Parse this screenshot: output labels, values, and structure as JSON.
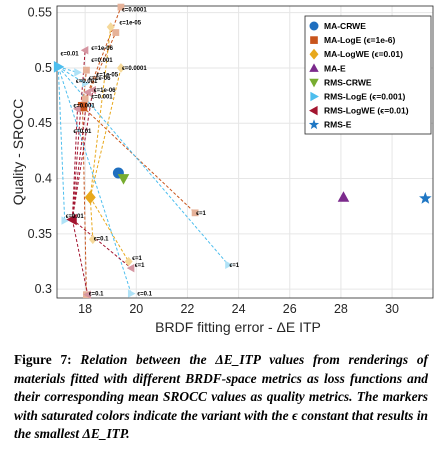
{
  "caption": {
    "label": "Figure 7:",
    "text": "Relation between the ΔE_ITP values from renderings of materials fitted with different BRDF-space metrics as loss functions and their corresponding mean SROCC values as quality metrics. The markers with saturated colors indicate the variant with the ϵ constant that results in the smallest ΔE_ITP."
  },
  "chart_data": {
    "type": "scatter",
    "xlabel": "BRDF fitting error - ΔE ITP",
    "ylabel": "Quality - SROCC",
    "xlim": [
      16.9,
      31.6
    ],
    "ylim": [
      0.292,
      0.556
    ],
    "xticks": [
      18,
      20,
      22,
      24,
      26,
      28,
      30
    ],
    "yticks": [
      0.3,
      0.35,
      0.4,
      0.45,
      0.5,
      0.55
    ],
    "grid": true,
    "legend_position": "top-right",
    "series": [
      {
        "name": "MA-CRWE",
        "color": "#1f6fbf",
        "marker": "circle",
        "points": [
          {
            "x": 19.3,
            "y": 0.405,
            "saturated": true
          }
        ]
      },
      {
        "name": "MA-LogE (ϵ=1e-6)",
        "color": "#c8541c",
        "marker": "square",
        "points": [
          {
            "x": 17.9,
            "y": 0.465,
            "label": "ϵ=1e-6",
            "saturated": true
          },
          {
            "x": 19.2,
            "y": 0.532,
            "label": "ϵ=1e-05"
          },
          {
            "x": 19.4,
            "y": 0.555,
            "label": "ϵ=0.0001"
          },
          {
            "x": 18.0,
            "y": 0.472,
            "label": "ϵ=0.001"
          },
          {
            "x": 18.05,
            "y": 0.498,
            "label": "ϵ=0.01"
          },
          {
            "x": 18.05,
            "y": 0.295,
            "label": "ϵ=0.1"
          },
          {
            "x": 22.3,
            "y": 0.369,
            "label": "ϵ=1"
          }
        ]
      },
      {
        "name": "MA-LogWE (ϵ=0.01)",
        "color": "#e8a81c",
        "marker": "diamond",
        "points": [
          {
            "x": 18.2,
            "y": 0.383,
            "label": "ϵ=0.01",
            "saturated": true
          },
          {
            "x": 19.0,
            "y": 0.537,
            "label": "ϵ=1e-05"
          },
          {
            "x": 19.4,
            "y": 0.5,
            "label": "ϵ=0.001"
          },
          {
            "x": 18.3,
            "y": 0.345,
            "label": "ϵ=0.1"
          },
          {
            "x": 19.7,
            "y": 0.325,
            "label": "ϵ=1"
          }
        ]
      },
      {
        "name": "MA-E",
        "color": "#7b2a8c",
        "marker": "triangle-up",
        "points": [
          {
            "x": 28.1,
            "y": 0.383,
            "saturated": true
          }
        ]
      },
      {
        "name": "RMS-CRWE",
        "color": "#77ac30",
        "marker": "triangle-down",
        "points": [
          {
            "x": 19.5,
            "y": 0.4,
            "saturated": true
          }
        ]
      },
      {
        "name": "RMS-LogE (ϵ=0.001)",
        "color": "#4dbeee",
        "marker": "triangle-right",
        "points": [
          {
            "x": 16.95,
            "y": 0.501,
            "label": "ϵ=0.001",
            "saturated": true
          },
          {
            "x": 17.2,
            "y": 0.362,
            "label": "ϵ=0.01"
          },
          {
            "x": 17.7,
            "y": 0.496,
            "label": "ϵ=1e-05"
          },
          {
            "x": 18.0,
            "y": 0.486,
            "label": "ϵ=1e-06"
          },
          {
            "x": 19.8,
            "y": 0.296,
            "label": "ϵ=0.1"
          },
          {
            "x": 23.6,
            "y": 0.322,
            "label": "ϵ=1"
          }
        ]
      },
      {
        "name": "RMS-LogWE (ϵ=0.01)",
        "color": "#a2142f",
        "marker": "triangle-left",
        "points": [
          {
            "x": 17.5,
            "y": 0.363,
            "label": "ϵ=0.01",
            "saturated": true
          },
          {
            "x": 18.1,
            "y": 0.478,
            "label": "ϵ=1e-06"
          },
          {
            "x": 18.0,
            "y": 0.516,
            "label": "ϵ=1e-06"
          },
          {
            "x": 18.3,
            "y": 0.48,
            "label": "ϵ=0.0001"
          },
          {
            "x": 17.7,
            "y": 0.463,
            "label": "ϵ=1e-06"
          },
          {
            "x": 18.1,
            "y": 0.295,
            "label": "ϵ=0.1"
          },
          {
            "x": 19.8,
            "y": 0.319,
            "label": "ϵ=1"
          }
        ]
      },
      {
        "name": "RMS-E",
        "color": "#1f77c4",
        "marker": "star",
        "points": [
          {
            "x": 31.3,
            "y": 0.382,
            "saturated": true
          }
        ]
      }
    ],
    "annotations": [
      {
        "text": "ϵ=0.0001",
        "x": 19.4,
        "y": 0.553
      },
      {
        "text": "ϵ=1e-05",
        "x": 19.3,
        "y": 0.541
      },
      {
        "text": "ϵ=1e-06",
        "x": 18.2,
        "y": 0.518
      },
      {
        "text": "ϵ=0.001",
        "x": 18.2,
        "y": 0.507
      },
      {
        "text": "ϵ=0.01",
        "x": 17.0,
        "y": 0.513
      },
      {
        "text": "ϵ=0.0001",
        "x": 19.4,
        "y": 0.5
      },
      {
        "text": "ϵ=1e-05",
        "x": 18.4,
        "y": 0.494
      },
      {
        "text": "ϵ=1e-06",
        "x": 18.1,
        "y": 0.491
      },
      {
        "text": "ϵ=0.001",
        "x": 17.6,
        "y": 0.488
      },
      {
        "text": "ϵ=1e-06",
        "x": 18.3,
        "y": 0.48
      },
      {
        "text": "ϵ=0.001",
        "x": 18.2,
        "y": 0.474
      },
      {
        "text": "ϵ=0.001",
        "x": 17.5,
        "y": 0.466
      },
      {
        "text": "ϵ=0.01",
        "x": 17.5,
        "y": 0.443
      },
      {
        "text": "ϵ=0.01",
        "x": 17.2,
        "y": 0.366
      },
      {
        "text": "ϵ=0.1",
        "x": 18.3,
        "y": 0.346
      },
      {
        "text": "ϵ=1",
        "x": 22.3,
        "y": 0.369
      },
      {
        "text": "ϵ=1",
        "x": 19.8,
        "y": 0.328
      },
      {
        "text": "ϵ=1",
        "x": 19.9,
        "y": 0.322
      },
      {
        "text": "ϵ=1",
        "x": 23.6,
        "y": 0.322
      },
      {
        "text": "ϵ=0.1",
        "x": 18.1,
        "y": 0.296
      },
      {
        "text": "ϵ=0.1",
        "x": 20.0,
        "y": 0.296
      }
    ]
  }
}
